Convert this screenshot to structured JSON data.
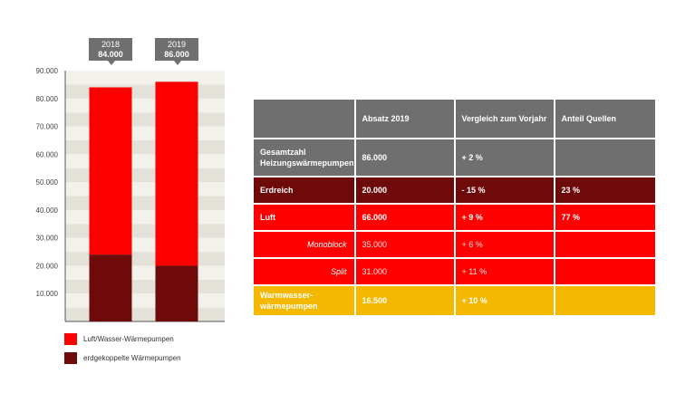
{
  "chart_data": {
    "type": "bar",
    "stacked": true,
    "categories": [
      "2018",
      "2019"
    ],
    "series": [
      {
        "name": "erdgekoppelte Wärmepumpen",
        "values": [
          24000,
          20000
        ],
        "color": "#6e0a0a"
      },
      {
        "name": "Luft/Wasser-Wärmepumpen",
        "values": [
          60000,
          66000
        ],
        "color": "#ff0000"
      }
    ],
    "totals_labels": [
      {
        "year": "2018",
        "total": "84.000"
      },
      {
        "year": "2019",
        "total": "86.000"
      }
    ],
    "yticks": [
      "10.000",
      "20.000",
      "30.000",
      "40.000",
      "50.000",
      "60.000",
      "70.000",
      "80.000",
      "90.000"
    ],
    "ylim": [
      0,
      90000
    ],
    "legend_position": "bottom-left",
    "background": "striped"
  },
  "legend": [
    {
      "label": "Luft/Wasser-Wärmepumpen",
      "color": "#ff0000"
    },
    {
      "label": "erdgekoppelte Wärmepumpen",
      "color": "#6e0a0a"
    }
  ],
  "table": {
    "headers": [
      "",
      "Absatz 2019",
      "Vergleich zum Vorjahr",
      "Anteil Quellen"
    ],
    "total": {
      "name_line1": "Gesamtzahl",
      "name_line2": "Heizungswärmepumpen",
      "absatz": "86.000",
      "vergleich": "+ 2 %",
      "anteil": ""
    },
    "erdreich": {
      "name": "Erdreich",
      "absatz": "20.000",
      "vergleich": "- 15 %",
      "anteil": "23 %"
    },
    "luft": {
      "name": "Luft",
      "absatz": "66.000",
      "vergleich": "+ 9 %",
      "anteil": "77 %"
    },
    "monoblock": {
      "name": "Monoblock",
      "absatz": "35.000",
      "vergleich": "+ 6 %",
      "anteil": ""
    },
    "split": {
      "name": "Split",
      "absatz": "31.000",
      "vergleich": "+ 11 %",
      "anteil": ""
    },
    "warmwasser": {
      "name_line1": "Warmwasser-",
      "name_line2": "wärmepumpen",
      "absatz": "16.500",
      "vergleich": "+ 10 %",
      "anteil": ""
    }
  }
}
